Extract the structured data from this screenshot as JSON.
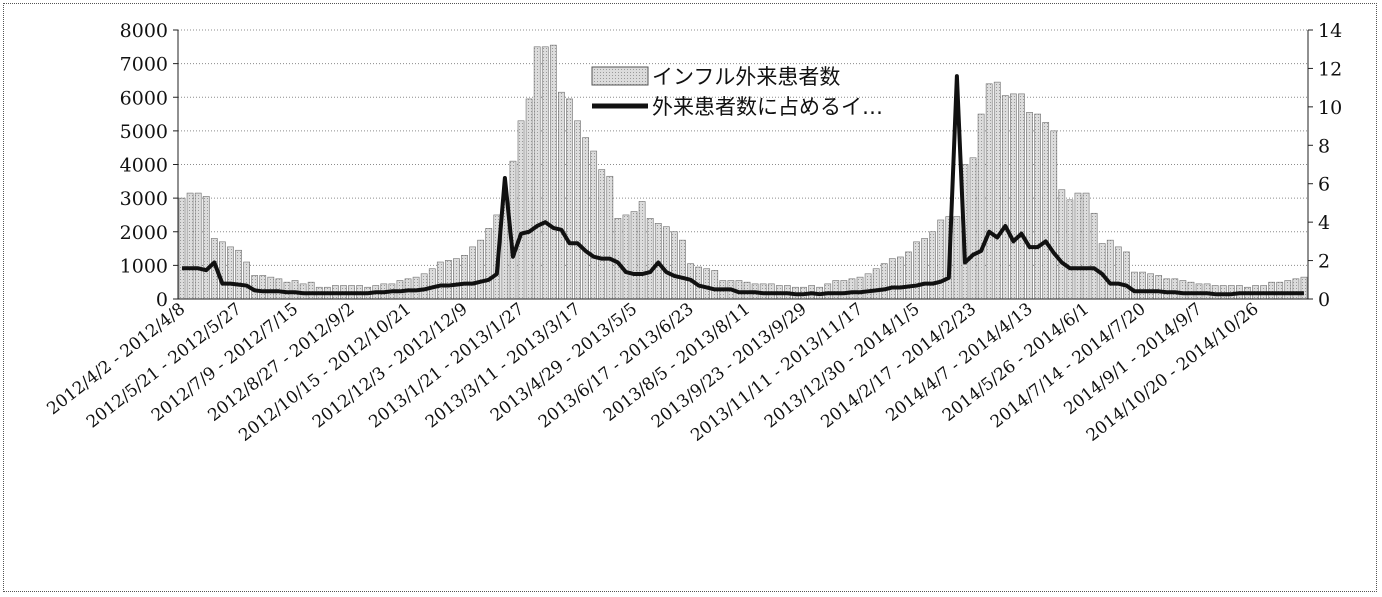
{
  "chart_data": {
    "type": "bar",
    "title": "",
    "xlabel": "",
    "ylabel": "",
    "ylim": [
      0,
      8000
    ],
    "y2lim": [
      0,
      14
    ],
    "yticks": [
      "0",
      "1000",
      "2000",
      "3000",
      "4000",
      "5000",
      "6000",
      "7000",
      "8000"
    ],
    "y2ticks": [
      "0",
      "2",
      "4",
      "6",
      "8",
      "10",
      "12",
      "14"
    ],
    "grid": true,
    "legend_position": "top-center",
    "x_labels": [
      "2012/4/2 - 2012/4/8",
      "2012/5/21 - 2012/5/27",
      "2012/7/9 - 2012/7/15",
      "2012/8/27 - 2012/9/2",
      "2012/10/15 - 2012/10/21",
      "2012/12/3 - 2012/12/9",
      "2013/1/21 - 2013/1/27",
      "2013/3/11 - 2013/3/17",
      "2013/4/29 - 2013/5/5",
      "2013/6/17 - 2013/6/23",
      "2013/8/5 - 2013/8/11",
      "2013/9/23 - 2013/9/29",
      "2013/11/11 - 2013/11/17",
      "2013/12/30 - 2014/1/5",
      "2014/2/17 - 2014/2/23",
      "2014/4/7 - 2014/4/13",
      "2014/5/26 - 2014/6/1",
      "2014/7/14 - 2014/7/20",
      "2014/9/1 - 2014/9/7",
      "2014/10/20 - 2014/10/26"
    ],
    "label_every": 7,
    "series": [
      {
        "name": "インフル外来患者数",
        "type": "bar",
        "axis": "left",
        "color": "#d9d9d9",
        "values": [
          3000,
          3150,
          3150,
          3050,
          1800,
          1700,
          1550,
          1450,
          1100,
          700,
          700,
          650,
          600,
          500,
          550,
          450,
          500,
          350,
          350,
          400,
          400,
          400,
          400,
          350,
          400,
          450,
          450,
          550,
          600,
          650,
          750,
          900,
          1100,
          1150,
          1200,
          1300,
          1550,
          1750,
          2100,
          2500,
          3100,
          4100,
          5300,
          5950,
          7500,
          7500,
          7550,
          6150,
          5950,
          5300,
          4800,
          4400,
          3850,
          3650,
          2400,
          2500,
          2600,
          2900,
          2400,
          2250,
          2150,
          2000,
          1750,
          1050,
          950,
          900,
          850,
          550,
          550,
          550,
          500,
          450,
          450,
          450,
          400,
          400,
          350,
          350,
          400,
          350,
          450,
          550,
          550,
          600,
          650,
          750,
          900,
          1050,
          1200,
          1250,
          1400,
          1700,
          1800,
          2000,
          2350,
          2450,
          2450,
          4000,
          4200,
          5500,
          6400,
          6450,
          6050,
          6100,
          6100,
          5550,
          5500,
          5250,
          5000,
          3250,
          2950,
          3150,
          3150,
          2550,
          1650,
          1750,
          1550,
          1400,
          800,
          800,
          750,
          700,
          600,
          600,
          550,
          500,
          450,
          450,
          400,
          400,
          400,
          400,
          350,
          400,
          400,
          500,
          500,
          550,
          600,
          650
        ]
      },
      {
        "name": "外来患者数に占めるイ…",
        "type": "line",
        "axis": "right",
        "color": "#111111",
        "values": [
          1.6,
          1.6,
          1.6,
          1.5,
          1.9,
          0.8,
          0.8,
          0.75,
          0.7,
          0.45,
          0.4,
          0.4,
          0.4,
          0.35,
          0.35,
          0.3,
          0.3,
          0.3,
          0.3,
          0.3,
          0.3,
          0.3,
          0.3,
          0.3,
          0.35,
          0.35,
          0.4,
          0.4,
          0.45,
          0.45,
          0.5,
          0.6,
          0.7,
          0.7,
          0.75,
          0.8,
          0.8,
          0.9,
          1.0,
          1.3,
          6.3,
          2.2,
          3.4,
          3.5,
          3.8,
          4.0,
          3.7,
          3.6,
          2.9,
          2.9,
          2.5,
          2.2,
          2.1,
          2.1,
          1.9,
          1.4,
          1.3,
          1.3,
          1.4,
          1.9,
          1.4,
          1.2,
          1.1,
          1.0,
          0.7,
          0.6,
          0.5,
          0.5,
          0.5,
          0.35,
          0.35,
          0.35,
          0.3,
          0.3,
          0.3,
          0.3,
          0.25,
          0.25,
          0.3,
          0.25,
          0.3,
          0.3,
          0.3,
          0.35,
          0.35,
          0.4,
          0.45,
          0.5,
          0.6,
          0.6,
          0.65,
          0.7,
          0.8,
          0.8,
          0.9,
          1.1,
          11.6,
          1.9,
          2.3,
          2.5,
          3.5,
          3.2,
          3.8,
          3.0,
          3.4,
          2.7,
          2.7,
          3.0,
          2.4,
          1.9,
          1.6,
          1.6,
          1.6,
          1.6,
          1.3,
          0.8,
          0.8,
          0.7,
          0.4,
          0.4,
          0.4,
          0.4,
          0.35,
          0.35,
          0.3,
          0.3,
          0.3,
          0.3,
          0.25,
          0.25,
          0.25,
          0.3,
          0.3,
          0.3,
          0.3,
          0.3,
          0.3,
          0.3,
          0.3,
          0.3
        ]
      }
    ]
  }
}
